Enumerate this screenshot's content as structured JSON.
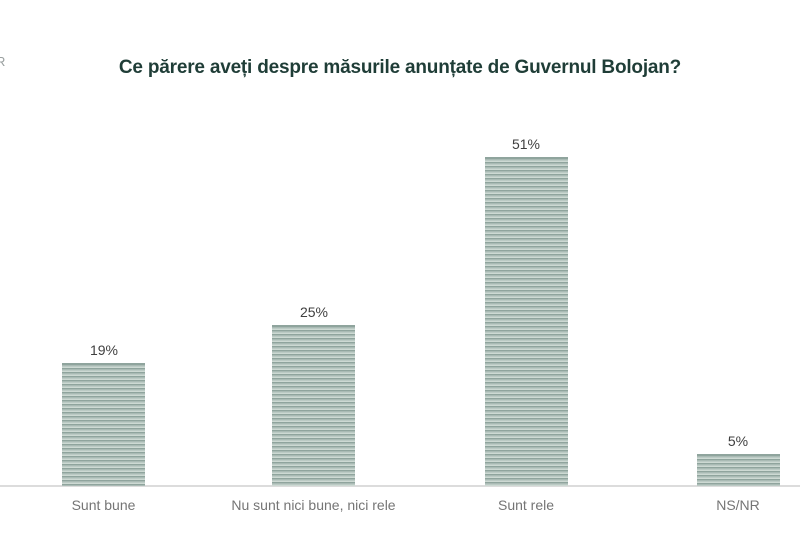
{
  "logo": {
    "fragment": "R"
  },
  "colors": {
    "title": "#1f3d37",
    "bar_stripe_dark": "#8fa49d",
    "bar_stripe_mid": "#a9bab4",
    "bar_stripe_light": "#cdd9d3",
    "value_label": "#3f3f3f",
    "category_label": "#757575",
    "axis_line": "#dcdcdc",
    "background": "#ffffff"
  },
  "chart_data": {
    "type": "bar",
    "title": "Ce părere aveți despre măsurile anunțate de Guvernul Bolojan?",
    "categories": [
      "Sunt bune",
      "Nu sunt nici bune, nici rele",
      "Sunt rele",
      "NS/NR"
    ],
    "values": [
      19,
      25,
      51,
      5
    ],
    "value_labels": [
      "19%",
      "25%",
      "51%",
      "5%"
    ],
    "xlabel": "",
    "ylabel": "",
    "ylim": [
      0,
      55
    ],
    "grid": false,
    "legend": false,
    "bar_texture": "horizontal-stripes"
  }
}
